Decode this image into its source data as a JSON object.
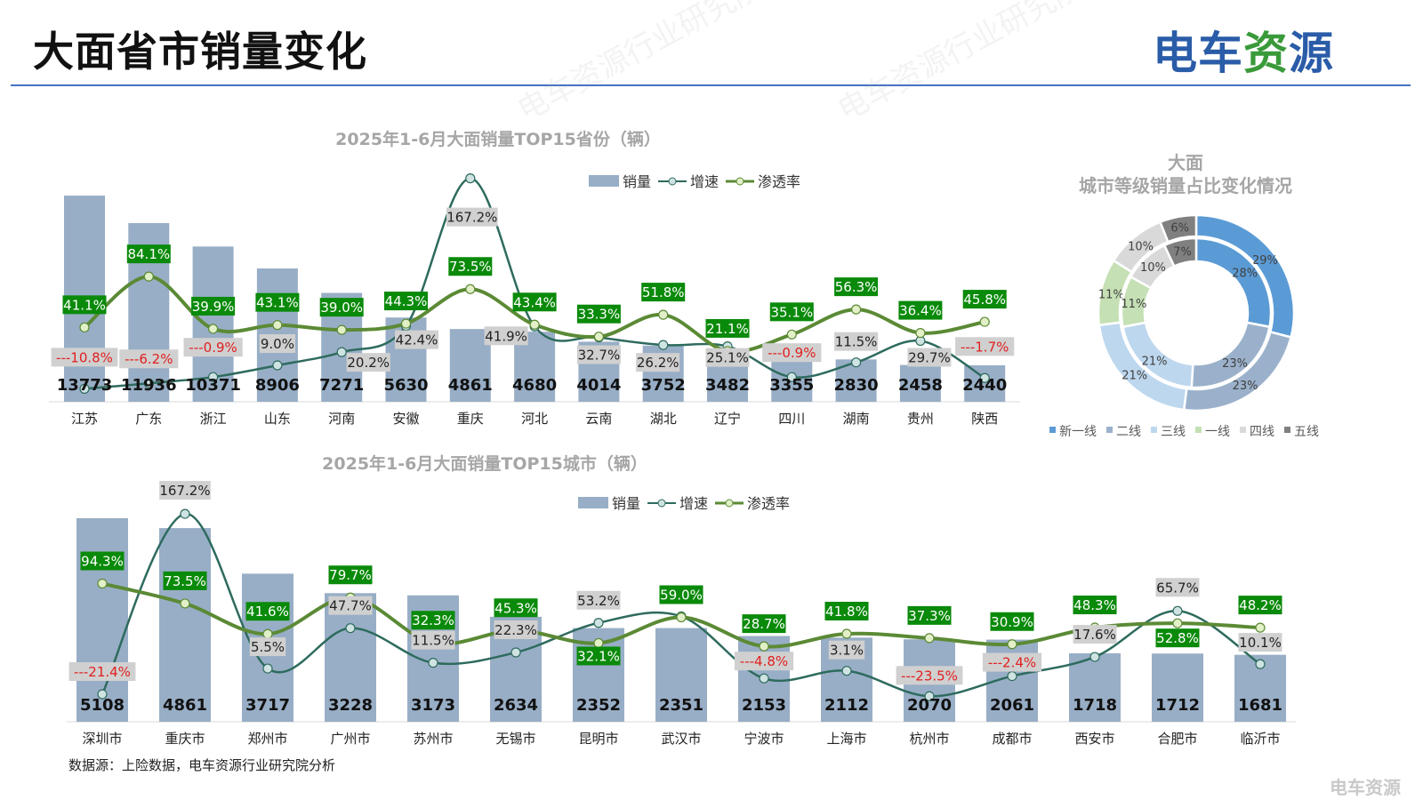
{
  "header": {
    "title": "大面省市销量变化",
    "logo": "电车资源"
  },
  "footer": {
    "source": "数据源：上险数据，电车资源行业研究院分析",
    "small_logo": "电车资源"
  },
  "watermark": "电车资源行业研究院",
  "colors": {
    "bar": "#98aec6",
    "growth": "#2e6b5e",
    "penetration": "#5b8a35",
    "label_green": "#0a8a0a",
    "negative": "#e02020",
    "rule": "#4472c4"
  },
  "legend": {
    "sales": "销量",
    "growth": "增速",
    "penetration": "渗透率"
  },
  "chart_data": [
    {
      "type": "bar+line",
      "title": "2025年1-6月大面销量TOP15省份（辆）",
      "categories": [
        "江苏",
        "广东",
        "浙江",
        "山东",
        "河南",
        "安徽",
        "重庆",
        "河北",
        "云南",
        "湖北",
        "辽宁",
        "四川",
        "湖南",
        "贵州",
        "陕西"
      ],
      "series": [
        {
          "name": "销量",
          "type": "bar",
          "values": [
            13773,
            11936,
            10371,
            8906,
            7271,
            5630,
            4861,
            4680,
            4014,
            3752,
            3482,
            3355,
            2830,
            2458,
            2440
          ]
        },
        {
          "name": "增速",
          "type": "line",
          "unit": "%",
          "values": [
            -10.8,
            -6.2,
            -0.9,
            9.0,
            20.2,
            42.4,
            167.2,
            41.9,
            32.7,
            26.2,
            25.1,
            -0.9,
            11.5,
            29.7,
            -1.7
          ]
        },
        {
          "name": "渗透率",
          "type": "line",
          "unit": "%",
          "values": [
            41.1,
            84.1,
            39.9,
            43.1,
            39.0,
            44.3,
            73.5,
            43.4,
            33.3,
            51.8,
            21.1,
            35.1,
            56.3,
            36.4,
            45.8
          ]
        }
      ],
      "legend_position": "top-center"
    },
    {
      "type": "bar+line",
      "title": "2025年1-6月大面销量TOP15城市（辆）",
      "categories": [
        "深圳市",
        "重庆市",
        "郑州市",
        "广州市",
        "苏州市",
        "无锡市",
        "昆明市",
        "武汉市",
        "宁波市",
        "上海市",
        "杭州市",
        "成都市",
        "西安市",
        "合肥市",
        "临沂市"
      ],
      "series": [
        {
          "name": "销量",
          "type": "bar",
          "values": [
            5108,
            4861,
            3717,
            3228,
            3173,
            2634,
            2352,
            2351,
            2153,
            2112,
            2070,
            2061,
            1718,
            1712,
            1681
          ]
        },
        {
          "name": "增速",
          "type": "line",
          "unit": "%",
          "values": [
            -21.4,
            167.2,
            5.5,
            47.7,
            11.5,
            22.3,
            53.2,
            60.0,
            -4.8,
            3.1,
            -23.5,
            -2.4,
            17.6,
            65.7,
            10.1
          ],
          "label_shown": [
            true,
            true,
            true,
            true,
            true,
            true,
            true,
            false,
            true,
            true,
            true,
            true,
            true,
            true,
            true
          ]
        },
        {
          "name": "渗透率",
          "type": "line",
          "unit": "%",
          "values": [
            94.3,
            73.5,
            41.6,
            79.7,
            32.3,
            45.3,
            32.1,
            59.0,
            28.7,
            41.8,
            37.3,
            30.9,
            48.3,
            52.8,
            48.2
          ]
        }
      ],
      "legend_position": "top-center"
    },
    {
      "type": "pie",
      "title": "大面",
      "subtitle": "城市等级销量占比变化情况",
      "categories": [
        "新一线",
        "二线",
        "三线",
        "一线",
        "四线",
        "五线"
      ],
      "colors": [
        "#5b9bd5",
        "#9bb1cb",
        "#bdd7ee",
        "#c5e0b4",
        "#d9d9d9",
        "#808080"
      ],
      "series": [
        {
          "name": "outer",
          "values": [
            29,
            23,
            21,
            11,
            10,
            6
          ]
        },
        {
          "name": "inner",
          "values": [
            28,
            23,
            21,
            11,
            10,
            7
          ]
        }
      ],
      "legend_position": "bottom"
    }
  ]
}
